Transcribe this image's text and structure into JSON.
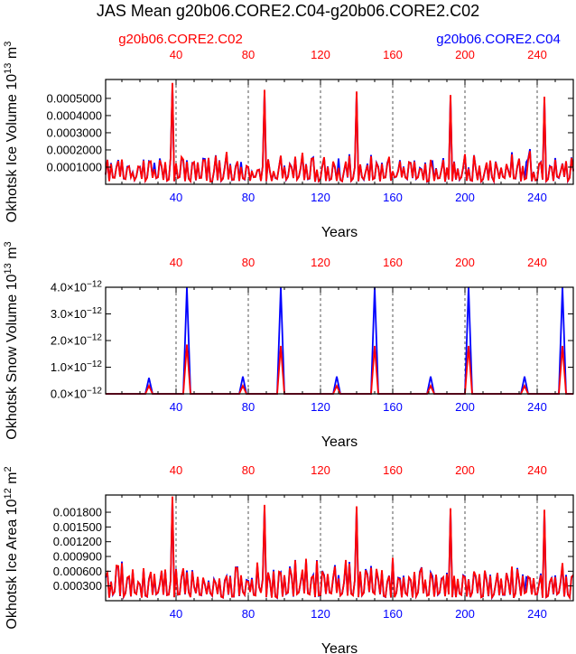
{
  "title": "JAS Mean g20b06.CORE2.C04-g20b06.CORE2.C02",
  "legend": {
    "left_label": "g20b06.CORE2.C02",
    "right_label": "g20b06.CORE2.C04",
    "left_color": "#ff0000",
    "right_color": "#0000ff"
  },
  "colors": {
    "c02": "#ff0000",
    "c04": "#0000ff",
    "axis": "#000000",
    "grid": "#555555"
  },
  "chart_data": [
    {
      "type": "line",
      "ylabel_main": "Okhotsk Ice Volume 10",
      "ylabel_exp": "13",
      "ylabel_unit": " m",
      "ylabel_unit_exp": "3",
      "xlabel": "Years",
      "xlim": [
        1,
        260
      ],
      "ylim": [
        0,
        0.00061
      ],
      "xticks": [
        40,
        80,
        120,
        160,
        200,
        240
      ],
      "xtick_labels": [
        "40",
        "80",
        "120",
        "160",
        "200",
        "240"
      ],
      "yticks": [
        0.0001,
        0.0002,
        0.0003,
        0.0004,
        0.0005
      ],
      "ytick_labels": [
        "0.0001000",
        "0.0002000",
        "0.0003000",
        "0.0004000",
        "0.0005000"
      ],
      "top_ticks_shown": true,
      "top_labels_color": "#ff0000",
      "bottom_labels_color": "#0000ff",
      "baseline": 3e-05,
      "amps": [
        0.000135,
        0.000135,
        0.00015,
        0.000135,
        0.000135,
        0.000125
      ],
      "peaks_c02": [
        [
          38,
          0.00059
        ],
        [
          89,
          0.00055
        ],
        [
          140,
          0.00054
        ],
        [
          192,
          0.00052
        ],
        [
          244,
          0.00051
        ]
      ],
      "extra_c04": [
        [
          28,
          0.000125
        ],
        [
          76,
          0.00013
        ],
        [
          130,
          0.00015
        ],
        [
          182,
          0.000135
        ],
        [
          234,
          0.00013
        ]
      ],
      "series": [
        {
          "name": "g20b06.CORE2.C02",
          "color": "#ff0000"
        },
        {
          "name": "g20b06.CORE2.C04",
          "color": "#0000ff"
        }
      ]
    },
    {
      "type": "line",
      "ylabel_main": "Okhotsk Snow Volume 10",
      "ylabel_exp": "13",
      "ylabel_unit": " m",
      "ylabel_unit_exp": "3",
      "xlabel": "Years",
      "xlim": [
        1,
        260
      ],
      "ylim": [
        0,
        4e-12
      ],
      "xticks": [
        40,
        80,
        120,
        160,
        200,
        240
      ],
      "xtick_labels": [
        "40",
        "80",
        "120",
        "160",
        "200",
        "240"
      ],
      "yticks": [
        0,
        1e-12,
        2e-12,
        3e-12,
        4e-12
      ],
      "ytick_mantissas": [
        "0.0",
        "1.0",
        "2.0",
        "3.0",
        "4.0"
      ],
      "ytick_suffix": "×10",
      "ytick_exp": "−12",
      "top_ticks_shown": true,
      "top_labels_color": "#ff0000",
      "bottom_labels_color": "#0000ff",
      "spikes_c04": [
        [
          25,
          6e-13
        ],
        [
          46,
          4e-12
        ],
        [
          77,
          6.5e-13
        ],
        [
          98,
          4e-12
        ],
        [
          129,
          6.5e-13
        ],
        [
          150,
          4e-12
        ],
        [
          181,
          6.5e-13
        ],
        [
          202,
          4e-12
        ],
        [
          233,
          6.5e-13
        ],
        [
          254,
          4e-12
        ]
      ],
      "spikes_c02": [
        [
          25,
          3e-13
        ],
        [
          46,
          1.85e-12
        ],
        [
          77,
          3e-13
        ],
        [
          98,
          1.8e-12
        ],
        [
          129,
          3e-13
        ],
        [
          150,
          1.8e-12
        ],
        [
          181,
          3e-13
        ],
        [
          202,
          1.8e-12
        ],
        [
          233,
          3e-13
        ],
        [
          254,
          1.8e-12
        ]
      ],
      "series": [
        {
          "name": "g20b06.CORE2.C02",
          "color": "#ff0000"
        },
        {
          "name": "g20b06.CORE2.C04",
          "color": "#0000ff"
        }
      ]
    },
    {
      "type": "line",
      "ylabel_main": "Okhotsk Ice Area 10",
      "ylabel_exp": "12",
      "ylabel_unit": " m",
      "ylabel_unit_exp": "2",
      "xlabel": "Years",
      "xlim": [
        1,
        260
      ],
      "ylim": [
        0,
        0.00215
      ],
      "xticks": [
        40,
        80,
        120,
        160,
        200,
        240
      ],
      "xtick_labels": [
        "40",
        "80",
        "120",
        "160",
        "200",
        "240"
      ],
      "yticks": [
        0.0003,
        0.0006,
        0.0009,
        0.0012,
        0.0015,
        0.0018
      ],
      "ytick_labels": [
        "0.000300",
        "0.000600",
        "0.000900",
        "0.001200",
        "0.001500",
        "0.001800"
      ],
      "top_ticks_shown": true,
      "top_labels_color": "#ff0000",
      "bottom_labels_color": "#0000ff",
      "baseline": 0.00012,
      "amps": [
        0.0006,
        0.00062,
        0.0006,
        0.00065,
        0.00062,
        0.0006
      ],
      "peaks_c02": [
        [
          38,
          0.00212
        ],
        [
          89,
          0.00195
        ],
        [
          140,
          0.00192
        ],
        [
          192,
          0.00188
        ],
        [
          244,
          0.00185
        ]
      ],
      "extra_c04": [
        [
          28,
          0.00045
        ],
        [
          76,
          0.00048
        ],
        [
          130,
          0.00052
        ],
        [
          182,
          0.0005
        ],
        [
          234,
          0.00048
        ]
      ],
      "series": [
        {
          "name": "g20b06.CORE2.C02",
          "color": "#ff0000"
        },
        {
          "name": "g20b06.CORE2.C04",
          "color": "#0000ff"
        }
      ]
    }
  ]
}
